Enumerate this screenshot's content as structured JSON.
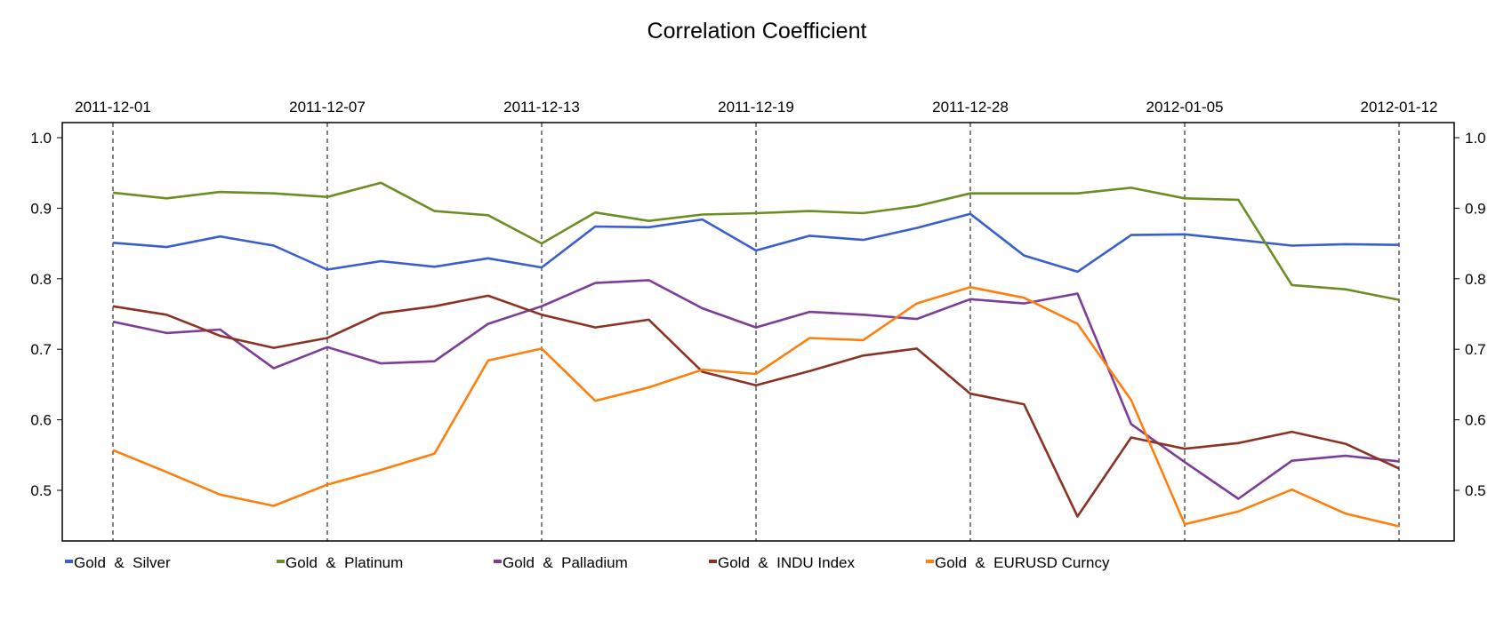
{
  "chart_data": {
    "type": "line",
    "title": "Correlation Coefficient",
    "xlabel": "",
    "ylabel": "",
    "ylim": [
      0.43,
      1.02
    ],
    "yticks": [
      0.5,
      0.6,
      0.7,
      0.8,
      0.9,
      1.0
    ],
    "ytick_labels": [
      "0.5",
      "0.6",
      "0.7",
      "0.8",
      "0.9",
      "1.0"
    ],
    "x_count": 25,
    "date_labels": [
      {
        "index": 0,
        "label": "2011-12-01"
      },
      {
        "index": 4,
        "label": "2011-12-07"
      },
      {
        "index": 8,
        "label": "2011-12-13"
      },
      {
        "index": 12,
        "label": "2011-12-19"
      },
      {
        "index": 16,
        "label": "2011-12-28"
      },
      {
        "index": 20,
        "label": "2012-01-05"
      },
      {
        "index": 24,
        "label": "2012-01-12"
      }
    ],
    "grid": "vertical dashed lines at labeled dates",
    "legend_position": "bottom-left",
    "series": [
      {
        "name": "Gold  &  Silver",
        "color": "#3a5fcd",
        "values": [
          0.851,
          0.845,
          0.86,
          0.847,
          0.813,
          0.825,
          0.817,
          0.829,
          0.816,
          0.874,
          0.873,
          0.884,
          0.84,
          0.861,
          0.855,
          0.872,
          0.892,
          0.833,
          0.81,
          0.862,
          0.863,
          0.855,
          0.847,
          0.849,
          0.848
        ]
      },
      {
        "name": "Gold  &  Platinum",
        "color": "#6b8e23",
        "values": [
          0.922,
          0.914,
          0.923,
          0.921,
          0.916,
          0.936,
          0.896,
          0.89,
          0.85,
          0.894,
          0.882,
          0.891,
          0.893,
          0.896,
          0.893,
          0.903,
          0.921,
          0.921,
          0.921,
          0.929,
          0.914,
          0.912,
          0.791,
          0.785,
          0.77
        ]
      },
      {
        "name": "Gold  &  Palladium",
        "color": "#7d3c98",
        "values": [
          0.739,
          0.723,
          0.728,
          0.673,
          0.703,
          0.68,
          0.683,
          0.736,
          0.761,
          0.794,
          0.798,
          0.758,
          0.731,
          0.753,
          0.749,
          0.743,
          0.771,
          0.765,
          0.779,
          0.594,
          0.54,
          0.488,
          0.542,
          0.549,
          0.541
        ]
      },
      {
        "name": "Gold  &  INDU Index",
        "color": "#8b3224",
        "values": [
          0.761,
          0.749,
          0.719,
          0.702,
          0.716,
          0.751,
          0.761,
          0.776,
          0.749,
          0.731,
          0.742,
          0.668,
          0.649,
          0.669,
          0.691,
          0.701,
          0.637,
          0.622,
          0.463,
          0.575,
          0.559,
          0.567,
          0.583,
          0.566,
          0.531
        ]
      },
      {
        "name": "Gold  &  EURUSD Curncy",
        "color": "#ff7f0e",
        "values": [
          0.557,
          0.526,
          0.494,
          0.478,
          0.508,
          0.529,
          0.552,
          0.684,
          0.701,
          0.627,
          0.646,
          0.671,
          0.665,
          0.716,
          0.713,
          0.765,
          0.788,
          0.773,
          0.736,
          0.628,
          0.452,
          0.47,
          0.501,
          0.467,
          0.449
        ]
      }
    ]
  }
}
